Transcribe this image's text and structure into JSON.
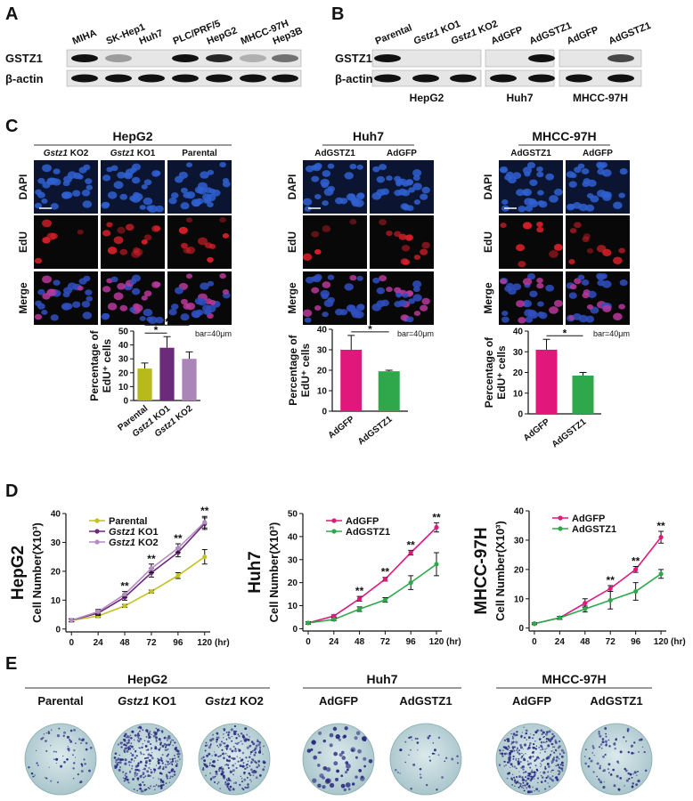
{
  "panel_labels": [
    "A",
    "B",
    "C",
    "D",
    "E"
  ],
  "panel_a": {
    "lanes": [
      "MIHA",
      "SK-Hep1",
      "Huh7",
      "PLC/PRF/5",
      "HepG2",
      "MHCC-97H",
      "Hep3B"
    ],
    "rows": [
      "GSTZ1",
      "β-actin"
    ]
  },
  "panel_b": {
    "lanes": [
      "Parental",
      "Gstz1 KO1",
      "Gstz1 KO2",
      "AdGFP",
      "AdGSTZ1",
      "AdGFP",
      "AdGSTZ1"
    ],
    "rows": [
      "GSTZ1",
      "β-actin"
    ],
    "groups": [
      "HepG2",
      "Huh7",
      "MHCC-97H"
    ]
  },
  "panel_c": {
    "row_labels": [
      "DAPI",
      "EdU",
      "Merge"
    ],
    "scale_note": "bar=40μm",
    "groups": [
      {
        "title": "HepG2",
        "columns": [
          "Gstz1 KO2",
          "Gstz1 KO1",
          "Parental"
        ]
      },
      {
        "title": "Huh7",
        "columns": [
          "AdGSTZ1",
          "AdGFP"
        ]
      },
      {
        "title": "MHCC-97H",
        "columns": [
          "AdGSTZ1",
          "AdGFP"
        ]
      }
    ]
  },
  "chart_data": [
    {
      "type": "bar",
      "y_label": [
        "Percentage of",
        "EdU⁺ cells"
      ],
      "categories": [
        "Parental",
        "Gstz1 KO1",
        "Gstz1 KO2"
      ],
      "values": [
        23,
        38,
        30
      ],
      "errors": [
        4,
        8,
        5
      ],
      "colors": [
        "#b8ba1c",
        "#6b2a7a",
        "#a985b8"
      ],
      "ylim": [
        0,
        50
      ],
      "yticks": [
        0,
        10,
        20,
        30,
        40,
        50
      ],
      "significance": [
        {
          "text": "*",
          "between": [
            "Parental",
            "Gstz1 KO1"
          ]
        },
        {
          "text": "*",
          "between": [
            "Parental",
            "Gstz1 KO2"
          ]
        }
      ]
    },
    {
      "type": "bar",
      "y_label": [
        "Percentage of",
        "EdU⁺ cells"
      ],
      "categories": [
        "AdGFP",
        "AdGSTZ1"
      ],
      "values": [
        30,
        19.5
      ],
      "errors": [
        7,
        0.5
      ],
      "colors": [
        "#e2177c",
        "#2fa84b"
      ],
      "ylim": [
        0,
        40
      ],
      "yticks": [
        0,
        10,
        20,
        30,
        40
      ],
      "significance": [
        {
          "text": "*",
          "between": [
            "AdGFP",
            "AdGSTZ1"
          ]
        }
      ]
    },
    {
      "type": "bar",
      "y_label": [
        "Percentage of",
        "EdU⁺ cells"
      ],
      "categories": [
        "AdGFP",
        "AdGSTZ1"
      ],
      "values": [
        31,
        18.5
      ],
      "errors": [
        5,
        1.5
      ],
      "colors": [
        "#e2177c",
        "#2fa84b"
      ],
      "ylim": [
        0,
        40
      ],
      "yticks": [
        0,
        10,
        20,
        30,
        40
      ],
      "significance": [
        {
          "text": "*",
          "between": [
            "AdGFP",
            "AdGSTZ1"
          ]
        }
      ]
    },
    {
      "type": "line",
      "title": "HepG2",
      "y_label": "Cell Number(X10³)",
      "x_label": "(hr)",
      "x": [
        0,
        24,
        48,
        72,
        96,
        120
      ],
      "xlim": [
        -5,
        125
      ],
      "xticks": [
        0,
        24,
        48,
        72,
        96,
        120
      ],
      "ylim": [
        -1,
        40
      ],
      "yticks": [
        0,
        10,
        20,
        30,
        40
      ],
      "legend": "upper left",
      "series": [
        {
          "name": "Parental",
          "color": "#c2c21c",
          "values": [
            3,
            4.5,
            8,
            13,
            18.5,
            25
          ],
          "errors": [
            0.5,
            0.5,
            0.5,
            0.5,
            1,
            2.5
          ]
        },
        {
          "name": "Gstz1 KO1",
          "color": "#6b2a7a",
          "values": [
            3,
            5.5,
            11,
            19.5,
            26.5,
            36.5
          ],
          "errors": [
            0.5,
            0.8,
            1,
            1.5,
            1.5,
            2
          ]
        },
        {
          "name": "Gstz1 KO2",
          "color": "#b48cc4",
          "values": [
            3,
            6,
            12,
            21,
            28,
            37
          ],
          "errors": [
            0.5,
            0.8,
            1,
            1.5,
            1.5,
            2
          ]
        }
      ],
      "significance": [
        {
          "text": "**",
          "x": 48
        },
        {
          "text": "**",
          "x": 72
        },
        {
          "text": "**",
          "x": 96
        },
        {
          "text": "**",
          "x": 120
        }
      ]
    },
    {
      "type": "line",
      "title": "Huh7",
      "y_label": "Cell Number(X10³)",
      "x_label": "(hr)",
      "x": [
        0,
        24,
        48,
        72,
        96,
        120
      ],
      "xlim": [
        -5,
        125
      ],
      "xticks": [
        0,
        24,
        48,
        72,
        96,
        120
      ],
      "ylim": [
        -1,
        50
      ],
      "yticks": [
        0,
        10,
        20,
        30,
        40,
        50
      ],
      "legend": "upper left",
      "series": [
        {
          "name": "AdGFP",
          "color": "#e2177c",
          "values": [
            2.5,
            5.5,
            13,
            21.5,
            33,
            44
          ],
          "errors": [
            0.5,
            0.5,
            1,
            0.8,
            1,
            2
          ]
        },
        {
          "name": "AdGSTZ1",
          "color": "#2fa84b",
          "values": [
            2.5,
            4,
            8.5,
            12.5,
            20,
            28
          ],
          "errors": [
            0.5,
            0.5,
            1,
            1,
            3,
            5
          ]
        }
      ],
      "significance": [
        {
          "text": "**",
          "x": 48
        },
        {
          "text": "**",
          "x": 72
        },
        {
          "text": "**",
          "x": 96
        },
        {
          "text": "**",
          "x": 120
        }
      ]
    },
    {
      "type": "line",
      "title": "MHCC-97H",
      "y_label": "Cell Number(X10³)",
      "x_label": "(hr)",
      "x": [
        0,
        24,
        48,
        72,
        96,
        120
      ],
      "xlim": [
        -5,
        125
      ],
      "xticks": [
        0,
        24,
        48,
        72,
        96,
        120
      ],
      "ylim": [
        -1,
        40
      ],
      "yticks": [
        0,
        10,
        20,
        30,
        40
      ],
      "legend": "upper left",
      "series": [
        {
          "name": "AdGFP",
          "color": "#e2177c",
          "values": [
            1.5,
            3.5,
            8.5,
            13.5,
            20,
            31
          ],
          "errors": [
            0.3,
            0.5,
            1.5,
            1,
            1,
            2
          ]
        },
        {
          "name": "AdGSTZ1",
          "color": "#2fa84b",
          "values": [
            1.5,
            3.5,
            6.5,
            9.5,
            12.5,
            18.5
          ],
          "errors": [
            0.3,
            0.5,
            1,
            3,
            3,
            1.5
          ]
        }
      ],
      "significance": [
        {
          "text": "**",
          "x": 72
        },
        {
          "text": "**",
          "x": 96
        },
        {
          "text": "**",
          "x": 120
        }
      ]
    }
  ],
  "panel_e": {
    "groups": [
      {
        "title": "HepG2",
        "columns": [
          "Parental",
          "Gstz1 KO1",
          "Gstz1 KO2"
        ]
      },
      {
        "title": "Huh7",
        "columns": [
          "AdGFP",
          "AdGSTZ1"
        ]
      },
      {
        "title": "MHCC-97H",
        "columns": [
          "AdGFP",
          "AdGSTZ1"
        ]
      }
    ]
  }
}
